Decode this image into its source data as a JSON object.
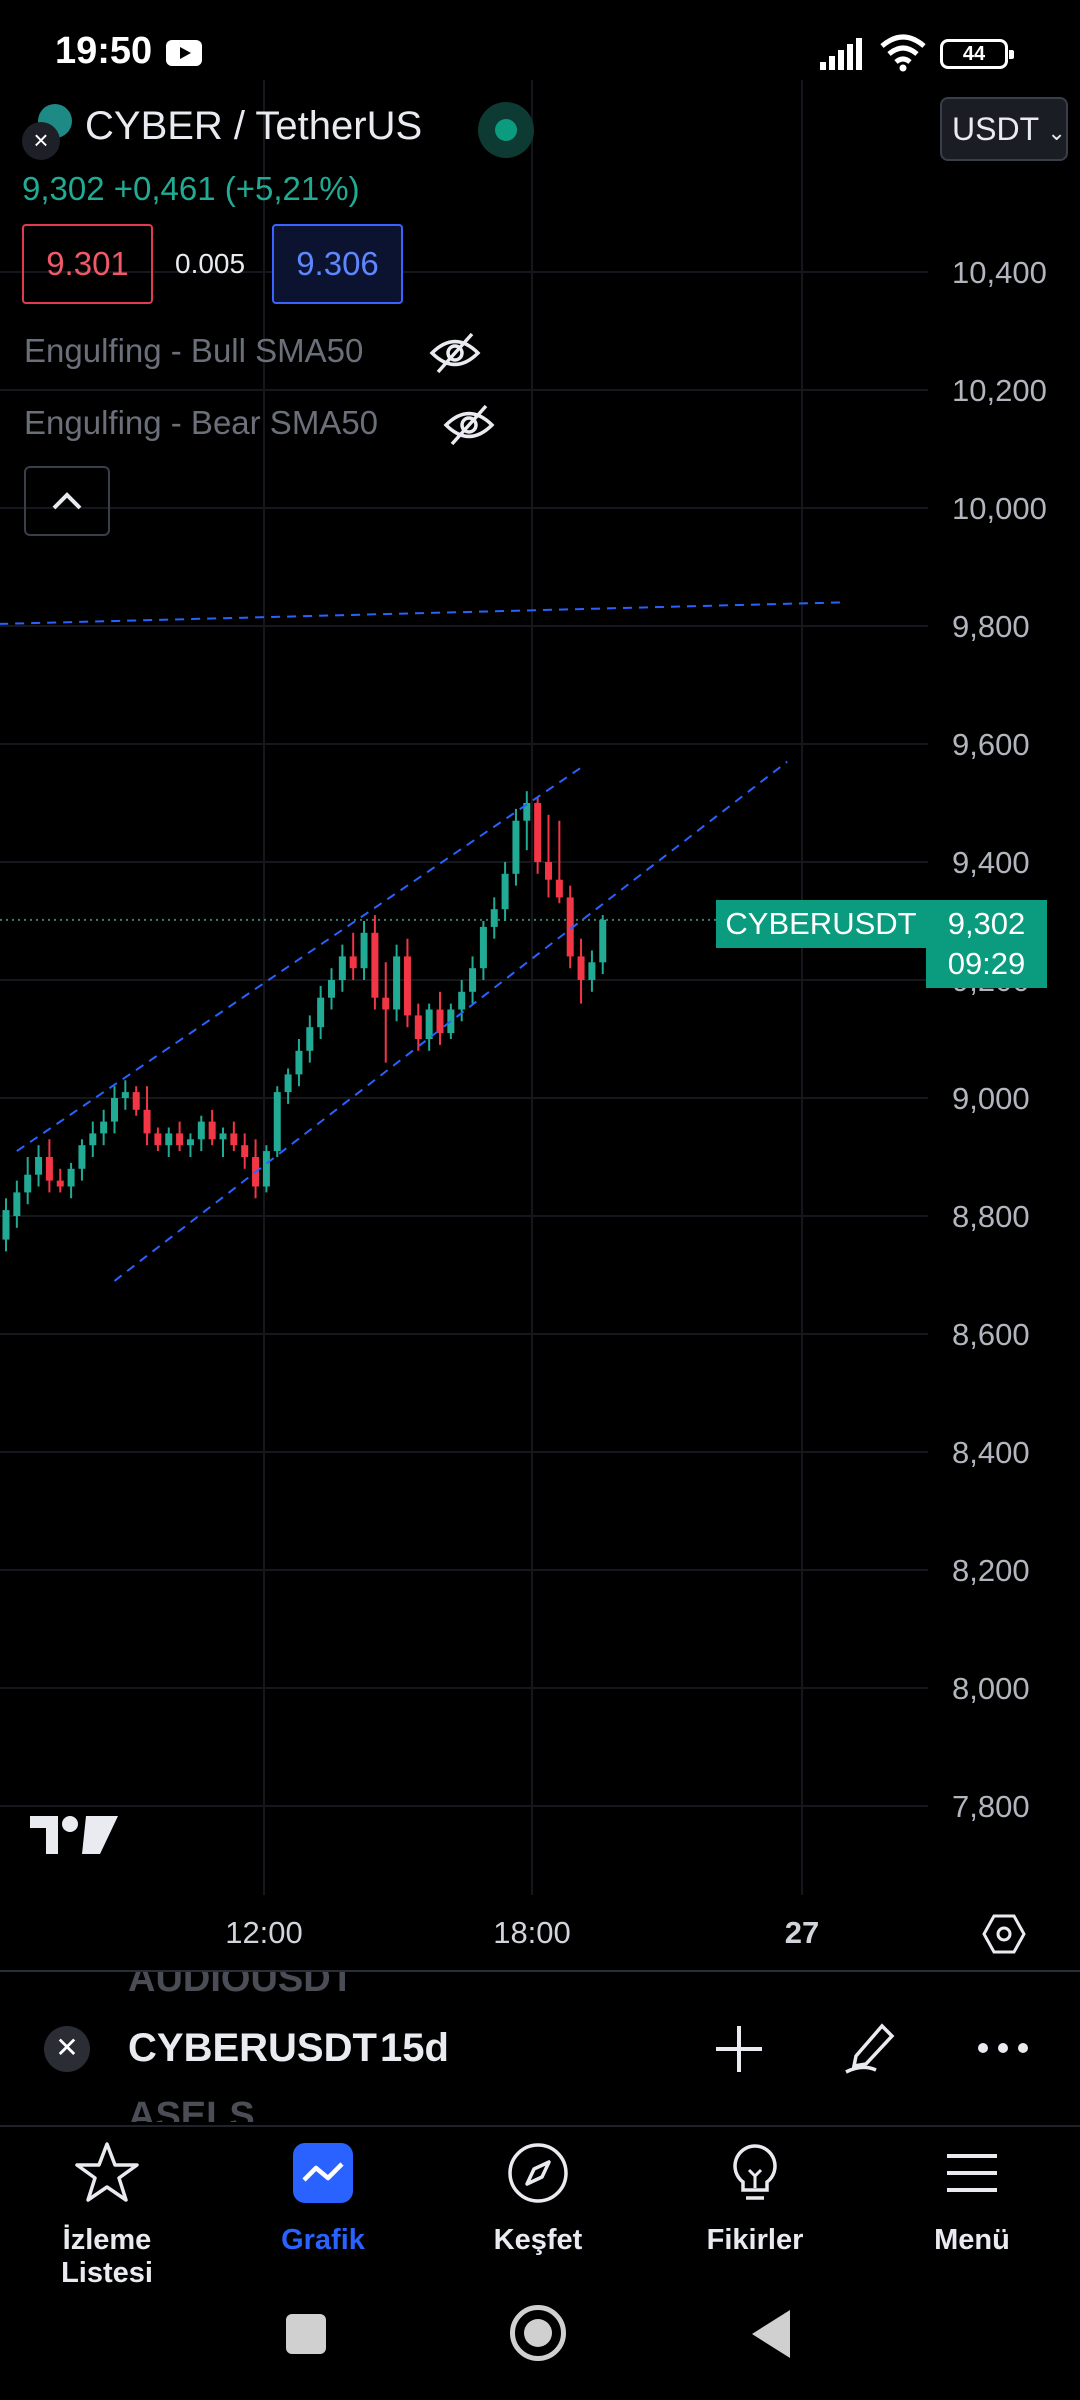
{
  "status_bar": {
    "time": "19:50",
    "battery": "44"
  },
  "header": {
    "symbol_title": "CYBER / TetherUS",
    "currency": "USDT",
    "price_line": "9,302  +0,461 (+5,21%)",
    "bid": "9.301",
    "spread": "0.005",
    "ask": "9.306",
    "indicators": [
      "Engulfing - Bull SMA50",
      "Engulfing - Bear SMA50"
    ]
  },
  "chart_data": {
    "type": "candlestick",
    "y_axis": [
      "10,400",
      "10,200",
      "10,000",
      "9,800",
      "9,600",
      "9,400",
      "9,200",
      "9,000",
      "8,800",
      "8,600",
      "8,400",
      "8,200",
      "8,000",
      "7,800"
    ],
    "ylim": [
      7.7,
      10.6
    ],
    "x_axis": [
      "12:00",
      "18:00",
      "27"
    ],
    "last_symbol": "CYBERUSDT",
    "last_price": "9,302",
    "countdown": "09:29",
    "colors": {
      "up": "#22ab94",
      "down": "#f23645",
      "trendline": "#2962ff"
    },
    "candles": [
      {
        "o": 8.76,
        "h": 8.83,
        "l": 8.74,
        "c": 8.81
      },
      {
        "o": 8.8,
        "h": 8.86,
        "l": 8.78,
        "c": 8.84
      },
      {
        "o": 8.84,
        "h": 8.9,
        "l": 8.82,
        "c": 8.87
      },
      {
        "o": 8.87,
        "h": 8.92,
        "l": 8.85,
        "c": 8.9
      },
      {
        "o": 8.9,
        "h": 8.93,
        "l": 8.84,
        "c": 8.86
      },
      {
        "o": 8.86,
        "h": 8.88,
        "l": 8.84,
        "c": 8.85
      },
      {
        "o": 8.85,
        "h": 8.89,
        "l": 8.83,
        "c": 8.88
      },
      {
        "o": 8.88,
        "h": 8.93,
        "l": 8.86,
        "c": 8.92
      },
      {
        "o": 8.92,
        "h": 8.96,
        "l": 8.9,
        "c": 8.94
      },
      {
        "o": 8.94,
        "h": 8.98,
        "l": 8.92,
        "c": 8.96
      },
      {
        "o": 8.96,
        "h": 9.02,
        "l": 8.94,
        "c": 9.0
      },
      {
        "o": 9.0,
        "h": 9.03,
        "l": 8.98,
        "c": 9.01
      },
      {
        "o": 9.01,
        "h": 9.02,
        "l": 8.97,
        "c": 8.98
      },
      {
        "o": 8.98,
        "h": 9.02,
        "l": 8.92,
        "c": 8.94
      },
      {
        "o": 8.94,
        "h": 8.95,
        "l": 8.91,
        "c": 8.92
      },
      {
        "o": 8.92,
        "h": 8.95,
        "l": 8.9,
        "c": 8.94
      },
      {
        "o": 8.94,
        "h": 8.96,
        "l": 8.91,
        "c": 8.92
      },
      {
        "o": 8.92,
        "h": 8.94,
        "l": 8.9,
        "c": 8.93
      },
      {
        "o": 8.93,
        "h": 8.97,
        "l": 8.91,
        "c": 8.96
      },
      {
        "o": 8.96,
        "h": 8.98,
        "l": 8.92,
        "c": 8.93
      },
      {
        "o": 8.93,
        "h": 8.95,
        "l": 8.9,
        "c": 8.94
      },
      {
        "o": 8.94,
        "h": 8.96,
        "l": 8.91,
        "c": 8.92
      },
      {
        "o": 8.92,
        "h": 8.94,
        "l": 8.88,
        "c": 8.9
      },
      {
        "o": 8.9,
        "h": 8.93,
        "l": 8.83,
        "c": 8.85
      },
      {
        "o": 8.85,
        "h": 8.92,
        "l": 8.84,
        "c": 8.91
      },
      {
        "o": 8.91,
        "h": 9.02,
        "l": 8.9,
        "c": 9.01
      },
      {
        "o": 9.01,
        "h": 9.05,
        "l": 8.99,
        "c": 9.04
      },
      {
        "o": 9.04,
        "h": 9.1,
        "l": 9.02,
        "c": 9.08
      },
      {
        "o": 9.08,
        "h": 9.14,
        "l": 9.06,
        "c": 9.12
      },
      {
        "o": 9.12,
        "h": 9.19,
        "l": 9.1,
        "c": 9.17
      },
      {
        "o": 9.17,
        "h": 9.22,
        "l": 9.15,
        "c": 9.2
      },
      {
        "o": 9.2,
        "h": 9.26,
        "l": 9.18,
        "c": 9.24
      },
      {
        "o": 9.24,
        "h": 9.28,
        "l": 9.2,
        "c": 9.22
      },
      {
        "o": 9.22,
        "h": 9.3,
        "l": 9.2,
        "c": 9.28
      },
      {
        "o": 9.28,
        "h": 9.31,
        "l": 9.15,
        "c": 9.17
      },
      {
        "o": 9.17,
        "h": 9.23,
        "l": 9.06,
        "c": 9.15
      },
      {
        "o": 9.15,
        "h": 9.26,
        "l": 9.13,
        "c": 9.24
      },
      {
        "o": 9.24,
        "h": 9.27,
        "l": 9.12,
        "c": 9.14
      },
      {
        "o": 9.14,
        "h": 9.16,
        "l": 9.08,
        "c": 9.1
      },
      {
        "o": 9.1,
        "h": 9.16,
        "l": 9.08,
        "c": 9.15
      },
      {
        "o": 9.15,
        "h": 9.18,
        "l": 9.09,
        "c": 9.11
      },
      {
        "o": 9.11,
        "h": 9.16,
        "l": 9.1,
        "c": 9.15
      },
      {
        "o": 9.15,
        "h": 9.2,
        "l": 9.13,
        "c": 9.18
      },
      {
        "o": 9.18,
        "h": 9.24,
        "l": 9.16,
        "c": 9.22
      },
      {
        "o": 9.22,
        "h": 9.3,
        "l": 9.2,
        "c": 9.29
      },
      {
        "o": 9.29,
        "h": 9.34,
        "l": 9.27,
        "c": 9.32
      },
      {
        "o": 9.32,
        "h": 9.4,
        "l": 9.3,
        "c": 9.38
      },
      {
        "o": 9.38,
        "h": 9.49,
        "l": 9.36,
        "c": 9.47
      },
      {
        "o": 9.47,
        "h": 9.52,
        "l": 9.42,
        "c": 9.5
      },
      {
        "o": 9.5,
        "h": 9.51,
        "l": 9.38,
        "c": 9.4
      },
      {
        "o": 9.4,
        "h": 9.48,
        "l": 9.34,
        "c": 9.37
      },
      {
        "o": 9.37,
        "h": 9.47,
        "l": 9.33,
        "c": 9.34
      },
      {
        "o": 9.34,
        "h": 9.36,
        "l": 9.22,
        "c": 9.24
      },
      {
        "o": 9.24,
        "h": 9.27,
        "l": 9.16,
        "c": 9.2
      },
      {
        "o": 9.2,
        "h": 9.25,
        "l": 9.18,
        "c": 9.23
      },
      {
        "o": 9.23,
        "h": 9.31,
        "l": 9.21,
        "c": 9.302
      }
    ],
    "trendlines": [
      {
        "t1": 1,
        "p1": 8.91,
        "t2": 53,
        "p2": 9.56
      },
      {
        "t1": 10,
        "p1": 8.69,
        "t2": 72,
        "p2": 9.57
      },
      {
        "t1": -8,
        "p1": 9.8,
        "t2": 77,
        "p2": 9.84
      }
    ]
  },
  "symbol_bar": {
    "ghost_prev": "AUDIOUSDT",
    "symbol": "CYBERUSDT",
    "interval": "15d",
    "ghost_next": "ASELS"
  },
  "bottom_nav": [
    {
      "label": "İzleme Listesi"
    },
    {
      "label": "Grafik"
    },
    {
      "label": "Keşfet"
    },
    {
      "label": "Fikirler"
    },
    {
      "label": "Menü"
    }
  ]
}
